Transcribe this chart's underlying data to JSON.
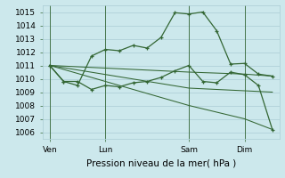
{
  "background_color": "#cce8ec",
  "grid_color": "#aaccd4",
  "line_color": "#336633",
  "title": "Pression niveau de la mer( hPa )",
  "ylabel_vals": [
    1006,
    1007,
    1008,
    1009,
    1010,
    1011,
    1012,
    1013,
    1014,
    1015
  ],
  "ylim": [
    1005.5,
    1015.5
  ],
  "xtick_labels": [
    "Ven",
    "Lun",
    "Sam",
    "Dim"
  ],
  "xtick_positions": [
    0,
    4,
    10,
    14
  ],
  "series": [
    {
      "x": [
        0,
        1,
        2,
        3,
        4,
        5,
        6,
        7,
        8,
        9,
        10,
        11,
        12,
        13,
        14,
        15,
        16
      ],
      "y": [
        1011.0,
        1009.8,
        1009.5,
        1011.7,
        1012.2,
        1012.1,
        1012.5,
        1012.3,
        1013.1,
        1014.95,
        1014.85,
        1015.0,
        1013.6,
        1011.1,
        1011.15,
        1010.35,
        1010.2
      ],
      "markers": true
    },
    {
      "x": [
        0,
        1,
        2,
        3,
        4,
        5,
        6,
        7,
        8,
        9,
        10,
        11,
        12,
        13,
        14,
        15,
        16
      ],
      "y": [
        1011.0,
        1009.8,
        1009.8,
        1009.2,
        1009.5,
        1009.4,
        1009.7,
        1009.8,
        1010.1,
        1010.6,
        1011.0,
        1009.8,
        1009.7,
        1010.5,
        1010.3,
        1009.5,
        1006.2
      ],
      "markers": true
    },
    {
      "x": [
        0,
        10,
        14,
        16
      ],
      "y": [
        1011.0,
        1010.5,
        1010.35,
        1010.2
      ],
      "markers": false
    },
    {
      "x": [
        0,
        10,
        14,
        16
      ],
      "y": [
        1011.0,
        1009.3,
        1009.1,
        1009.0
      ],
      "markers": false
    },
    {
      "x": [
        0,
        10,
        14,
        16
      ],
      "y": [
        1011.0,
        1008.0,
        1007.0,
        1006.2
      ],
      "markers": false
    }
  ],
  "vlines_x": [
    0,
    4,
    10,
    14
  ],
  "xlim": [
    -0.5,
    16.5
  ],
  "figsize": [
    3.2,
    2.0
  ],
  "dpi": 100
}
